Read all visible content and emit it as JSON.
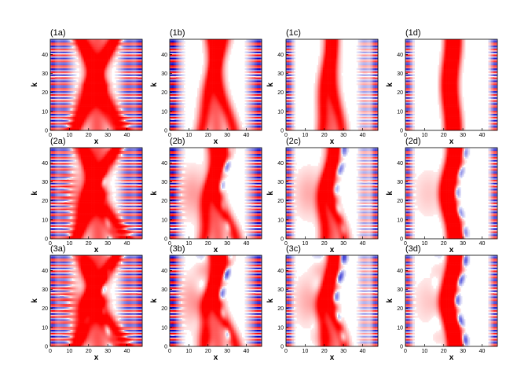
{
  "chart_data": {
    "type": "heatmap",
    "layout": "3 rows x 4 columns of panels",
    "colors": {
      "positive": "#ff0000",
      "negative": "#0000c8",
      "zero": "#ffffff"
    },
    "panels": [
      {
        "label": "(1a)",
        "pattern": "a",
        "row": 1,
        "xlabel": "x",
        "ylabel": "k"
      },
      {
        "label": "(1b)",
        "pattern": "b",
        "row": 1,
        "xlabel": "x",
        "ylabel": "k"
      },
      {
        "label": "(1c)",
        "pattern": "c",
        "row": 1,
        "xlabel": "x",
        "ylabel": "k"
      },
      {
        "label": "(1d)",
        "pattern": "d",
        "row": 1,
        "xlabel": "x",
        "ylabel": "k"
      },
      {
        "label": "(2a)",
        "pattern": "a",
        "row": 2,
        "xlabel": "x",
        "ylabel": "k"
      },
      {
        "label": "(2b)",
        "pattern": "b",
        "row": 2,
        "xlabel": "x",
        "ylabel": "k"
      },
      {
        "label": "(2c)",
        "pattern": "c",
        "row": 2,
        "xlabel": "x",
        "ylabel": "k"
      },
      {
        "label": "(2d)",
        "pattern": "d",
        "row": 2,
        "xlabel": "x",
        "ylabel": "k"
      },
      {
        "label": "(3a)",
        "pattern": "a",
        "row": 3,
        "xlabel": "x",
        "ylabel": "k"
      },
      {
        "label": "(3b)",
        "pattern": "b",
        "row": 3,
        "xlabel": "x",
        "ylabel": "k"
      },
      {
        "label": "(3c)",
        "pattern": "c",
        "row": 3,
        "xlabel": "x",
        "ylabel": "k"
      },
      {
        "label": "(3d)",
        "pattern": "d",
        "row": 3,
        "xlabel": "x",
        "ylabel": "k"
      }
    ],
    "xlim": [
      0,
      48
    ],
    "ylim": [
      0,
      48
    ],
    "xticks": [
      "0",
      "10",
      "20",
      "30",
      "40"
    ],
    "yticks": [
      "0",
      "10",
      "20",
      "30",
      "40"
    ],
    "grid": false
  }
}
